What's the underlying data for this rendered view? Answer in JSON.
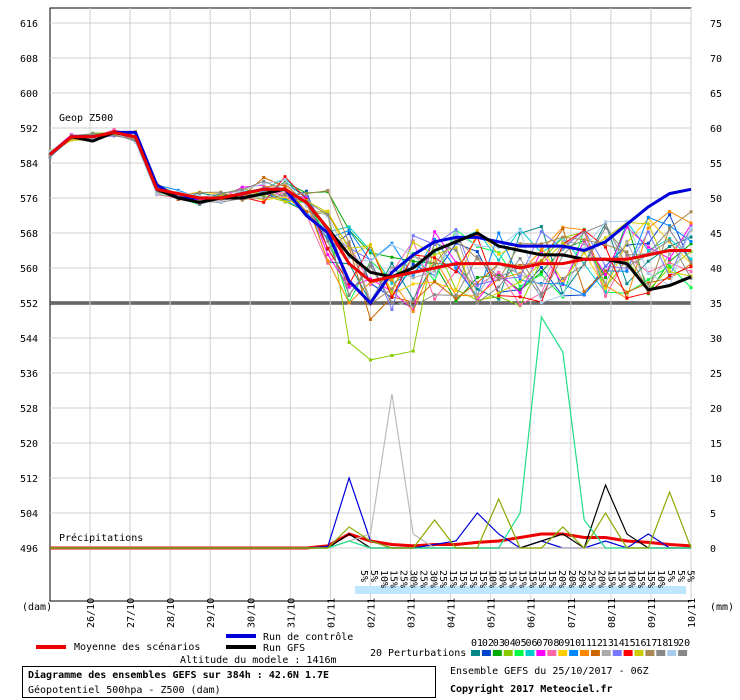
{
  "chart_data": {
    "type": "line",
    "geop_label": "Geop Z500",
    "precip_label": "Précipitations",
    "y_left_ticks": [
      616,
      608,
      600,
      592,
      584,
      576,
      568,
      560,
      552,
      544,
      536,
      528,
      520,
      512,
      504,
      496
    ],
    "y_left_unit": "(dam)",
    "y_right_ticks": [
      75,
      70,
      65,
      60,
      55,
      50,
      45,
      40,
      35,
      30,
      25,
      20,
      15,
      10,
      5,
      0
    ],
    "y_right_unit": "(mm)",
    "ylim_left": [
      496,
      620
    ],
    "x_ticks": [
      "26/10",
      "27/10",
      "28/10",
      "29/10",
      "30/10",
      "31/10",
      "01/11",
      "02/11",
      "03/11",
      "04/11",
      "05/11",
      "06/11",
      "07/11",
      "08/11",
      "09/11",
      "10/11"
    ],
    "precip_prob_labels": [
      "5%",
      "5%",
      "10%",
      "15%",
      "25%",
      "30%",
      "25%",
      "30%",
      "25%",
      "15%",
      "15%",
      "15%",
      "15%",
      "10%",
      "10%",
      "15%",
      "15%",
      "15%",
      "15%",
      "15%",
      "20%",
      "20%",
      "20%",
      "25%",
      "20%",
      "15%",
      "15%",
      "10%",
      "15%",
      "15%",
      "10%",
      "5%",
      "5%",
      "5%"
    ],
    "control_run": {
      "name": "Run de contrôle",
      "values": [
        586,
        590,
        590,
        591,
        591,
        579,
        576,
        576,
        576,
        577,
        578,
        578,
        572,
        568,
        557,
        552,
        559,
        563,
        566,
        567,
        567,
        566,
        565,
        565,
        565,
        564,
        566,
        570,
        574,
        577,
        578
      ],
      "color": "#0000dd"
    },
    "gfs_run": {
      "name": "Run GFS",
      "values": [
        586,
        590,
        589,
        591,
        590,
        578,
        576,
        575,
        576,
        576,
        577,
        578,
        575,
        569,
        563,
        559,
        558,
        560,
        564,
        566,
        568,
        565,
        564,
        563,
        563,
        562,
        562,
        561,
        555,
        556,
        558
      ],
      "color": "#000000"
    },
    "mean": {
      "name": "Moyenne des scénarios",
      "values": [
        586,
        590,
        590,
        591,
        590,
        578,
        577,
        576,
        576,
        577,
        578,
        578,
        575,
        569,
        561,
        557,
        558,
        559,
        560,
        561,
        561,
        561,
        560,
        561,
        561,
        562,
        562,
        562,
        563,
        564,
        564
      ],
      "color": "#ee0000"
    },
    "precip_series": [
      {
        "name": "mean",
        "values": [
          0,
          0,
          0,
          0,
          0,
          0,
          0,
          0,
          0,
          0,
          0,
          0,
          0,
          0.3,
          2,
          1,
          0.5,
          0.3,
          0.5,
          0.5,
          0.8,
          1,
          1.5,
          2,
          2,
          1.5,
          1.5,
          1,
          0.8,
          0.5,
          0.3
        ],
        "color": "#ee0000"
      },
      {
        "name": "control",
        "values": [
          0,
          0,
          0,
          0,
          0,
          0,
          0,
          0,
          0,
          0,
          0,
          0,
          0,
          0.2,
          10,
          1,
          0,
          0,
          0.5,
          1,
          5,
          2,
          0,
          1,
          0,
          0,
          1,
          0,
          2,
          0,
          0
        ],
        "color": "#0000dd"
      },
      {
        "name": "gfs",
        "values": [
          0,
          0,
          0,
          0,
          0,
          0,
          0,
          0,
          0,
          0,
          0,
          0,
          0,
          0,
          2,
          0,
          0,
          0,
          0,
          0,
          0,
          0,
          0,
          1,
          2,
          0,
          9,
          2,
          0,
          0,
          0
        ],
        "color": "#000000"
      },
      {
        "name": "gris",
        "values": [
          0,
          0,
          0,
          0,
          0,
          0,
          0,
          0,
          0,
          0,
          0,
          0,
          0,
          0,
          1,
          2,
          22,
          2,
          0,
          0,
          0,
          0,
          0,
          0,
          0,
          0,
          0,
          0,
          0,
          0,
          0
        ],
        "color": "#bbbbbb"
      },
      {
        "name": "vert",
        "values": [
          0,
          0,
          0,
          0,
          0,
          0,
          0,
          0,
          0,
          0,
          0,
          0,
          0,
          0,
          1,
          0,
          0,
          0,
          0,
          0,
          0,
          0,
          5,
          33,
          28,
          4,
          0,
          0,
          0,
          0,
          0
        ],
        "color": "#22dd88"
      },
      {
        "name": "olive",
        "values": [
          0,
          0,
          0,
          0,
          0,
          0,
          0,
          0,
          0,
          0,
          0,
          0,
          0,
          0,
          3,
          1,
          0,
          0,
          4,
          0,
          0,
          7,
          0,
          0,
          3,
          0,
          5,
          0,
          0,
          8,
          0
        ],
        "color": "#88aa00"
      }
    ],
    "legend": {
      "mean": "Moyenne des scénarios",
      "control": "Run de contrôle",
      "gfs": "Run GFS",
      "perturbations": "20 Perturbations",
      "perturbation_ids": [
        "01",
        "02",
        "03",
        "04",
        "05",
        "06",
        "07",
        "08",
        "09",
        "10",
        "11",
        "12",
        "13",
        "14",
        "15",
        "16",
        "17",
        "18",
        "19",
        "20"
      ],
      "perturbation_colors": [
        "#008888",
        "#0044cc",
        "#00aa00",
        "#88cc00",
        "#00ff44",
        "#00cccc",
        "#ff00ff",
        "#ff66aa",
        "#ffcc00",
        "#0088ff",
        "#ff8800",
        "#cc6600",
        "#aaaaaa",
        "#7777ff",
        "#ff0000",
        "#cccc00",
        "#aa8855",
        "#888888",
        "#aaccee",
        "#888888"
      ]
    },
    "altitude": "Altitude du modele : 1416m"
  },
  "footer": {
    "title": "Diagramme des ensembles GEFS sur 384h : 42.6N 1.7E",
    "subtitle": "Géopotentiel 500hpa - Z500 (dam)",
    "ensemble_info": "Ensemble GEFS du 25/10/2017 - 06Z",
    "copyright": "Copyright 2017 Meteociel.fr"
  }
}
